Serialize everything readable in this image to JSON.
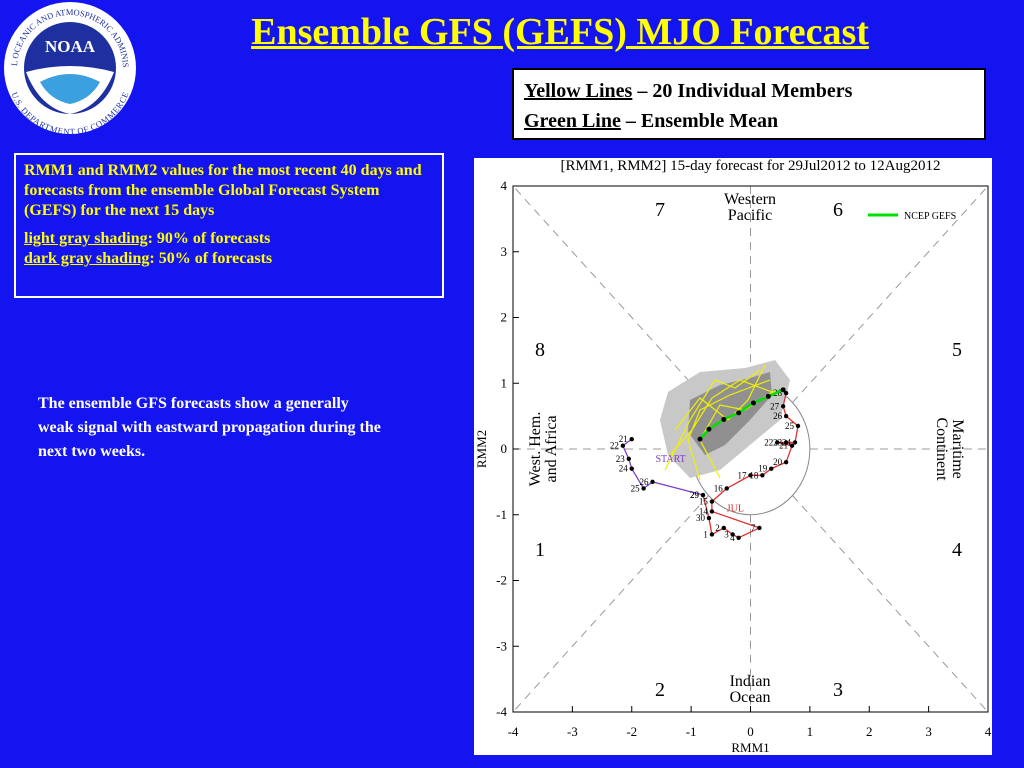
{
  "logo": {
    "label": "NOAA",
    "ring_top": "NATIONAL OCEANIC AND ATMOSPHERIC ADMINISTRATION",
    "ring_bottom": "U.S. DEPARTMENT OF COMMERCE"
  },
  "header": {
    "title": "Ensemble GFS (GEFS) MJO Forecast"
  },
  "legend_box": {
    "lines": [
      {
        "key": "Yellow Lines",
        "text": " – 20 Individual Members"
      },
      {
        "key": "Green Line",
        "text": " – Ensemble Mean"
      }
    ]
  },
  "info_box": {
    "description": "RMM1 and RMM2 values for the most recent 40 days and forecasts from the ensemble Global Forecast System (GEFS) for the next 15 days",
    "shading": [
      {
        "key": "light gray shading",
        "text": ": 90% of forecasts"
      },
      {
        "key": "dark gray shading",
        "text": ": 50% of forecasts"
      }
    ]
  },
  "body": {
    "text": "The ensemble GFS forecasts show a generally weak signal with eastward propagation during the next two weeks."
  },
  "chart_data": {
    "type": "scatter",
    "title": "[RMM1, RMM2] 15-day forecast for 29Jul2012 to 12Aug2012",
    "xlabel": "RMM1",
    "ylabel": "RMM2",
    "xlim": [
      -4,
      4
    ],
    "ylim": [
      -4,
      4
    ],
    "xticks": [
      -4,
      -3,
      -2,
      -1,
      0,
      1,
      2,
      3,
      4
    ],
    "yticks": [
      -4,
      -3,
      -2,
      -1,
      0,
      1,
      2,
      3,
      4
    ],
    "phases": [
      "1",
      "2",
      "3",
      "4",
      "5",
      "6",
      "7",
      "8"
    ],
    "regions": {
      "top": [
        "Western",
        "Pacific"
      ],
      "bottom": [
        "Indian",
        "Ocean"
      ],
      "left": [
        "West. Hem.",
        "and Africa"
      ],
      "right": [
        "Maritime",
        "Continent"
      ]
    },
    "series": [
      {
        "name": "NCEP GEFS",
        "color": "#00e000",
        "x": [
          0.55,
          0.3,
          0.05,
          -0.2,
          -0.45,
          -0.7,
          -0.85
        ],
        "values": [
          0.9,
          0.8,
          0.7,
          0.55,
          0.45,
          0.3,
          0.15
        ]
      }
    ],
    "observed": [
      {
        "color": "#8040c0",
        "x": [
          -2.0,
          -2.15,
          -2.05,
          -2.0,
          -1.8,
          -1.65,
          -0.8
        ],
        "values": [
          0.15,
          0.05,
          -0.15,
          -0.3,
          -0.6,
          -0.5,
          -0.7
        ],
        "labels": [
          "21",
          "22",
          "23",
          "24",
          "25",
          "26",
          "29"
        ]
      },
      {
        "color": "#e03030",
        "x": [
          -0.8,
          -0.7,
          -0.65,
          -0.45,
          -0.3,
          -0.2,
          0.15,
          -0.65,
          -0.65,
          -0.4,
          0.0,
          0.2,
          0.35,
          0.6,
          0.7,
          0.45,
          0.6,
          0.75,
          0.8,
          0.6,
          0.55,
          0.6
        ],
        "values": [
          -0.7,
          -1.05,
          -1.3,
          -1.2,
          -1.3,
          -1.35,
          -1.2,
          -0.95,
          -0.8,
          -0.6,
          -0.4,
          -0.4,
          -0.3,
          -0.2,
          0.05,
          0.1,
          0.1,
          0.1,
          0.35,
          0.5,
          0.65,
          0.85
        ],
        "labels": [
          "29",
          "30",
          "1",
          "2",
          "3",
          "4",
          "7",
          "14",
          "15",
          "16",
          "17",
          "18",
          "19",
          "20",
          "21",
          "22",
          "23",
          "24",
          "25",
          "26",
          "27",
          "28"
        ]
      }
    ],
    "annotations": [
      {
        "text": "START",
        "x": -1.6,
        "y": -0.2,
        "color": "#8040c0"
      },
      {
        "text": "JUL",
        "x": -0.4,
        "y": -0.95,
        "color": "#e03030"
      }
    ]
  }
}
